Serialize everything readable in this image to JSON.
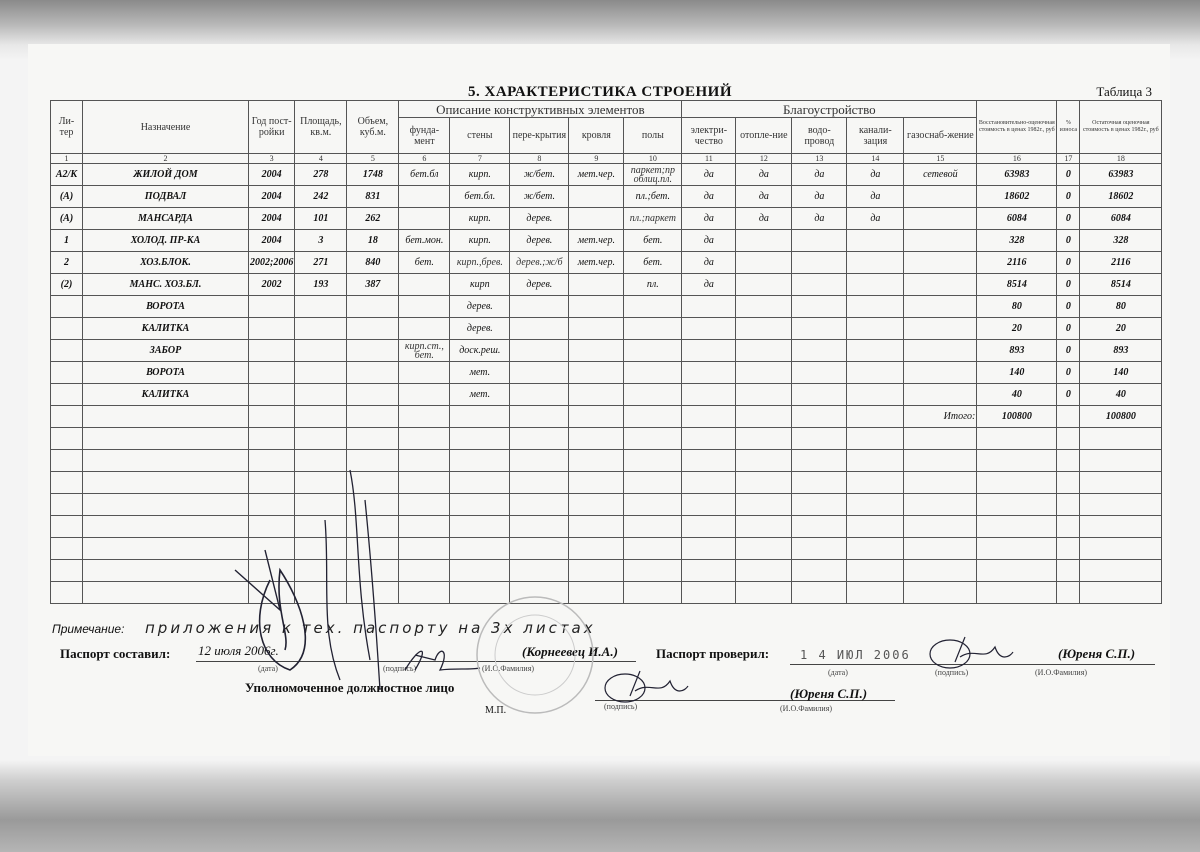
{
  "document": {
    "title": "5. ХАРАКТЕРИСТИКА СТРОЕНИЙ",
    "table_number": "Таблица 3"
  },
  "table": {
    "headers": {
      "liter": "Ли-тер",
      "purpose": "Назначение",
      "year": "Год пост-ройки",
      "area": "Площадь, кв.м.",
      "volume": "Объем, куб.м.",
      "group_constructive": "Описание конструктивных элементов",
      "foundation": "фунда-мент",
      "walls": "стены",
      "floors_slabs": "пере-крытия",
      "roof": "кровля",
      "floors": "полы",
      "group_amenities": "Благоустройство",
      "electricity": "электри-чество",
      "heating": "отопле-ние",
      "water": "водо-провод",
      "sewer": "канали-зация",
      "gas": "газоснаб-жение",
      "replacement_cost": "Восстановительно-оценочная стоимость в ценах 1982г., руб",
      "wear": "% износа",
      "residual_cost": "Остаточная оценочная стоимость в ценах 1982г., руб"
    },
    "column_numbers": [
      "1",
      "2",
      "3",
      "4",
      "5",
      "6",
      "7",
      "8",
      "9",
      "10",
      "11",
      "12",
      "13",
      "14",
      "15",
      "16",
      "17",
      "18"
    ],
    "rows": [
      [
        "А2/К",
        "ЖИЛОЙ ДОМ",
        "2004",
        "278",
        "1748",
        "бет.бл",
        "кирп.",
        "ж/бет.",
        "мет.чер.",
        "паркет;пр облиц.пл.",
        "да",
        "да",
        "да",
        "да",
        "сетевой",
        "63983",
        "0",
        "63983"
      ],
      [
        "(А)",
        "ПОДВАЛ",
        "2004",
        "242",
        "831",
        "",
        "бет.бл.",
        "ж/бет.",
        "",
        "пл.;бет.",
        "да",
        "да",
        "да",
        "да",
        "",
        "18602",
        "0",
        "18602"
      ],
      [
        "(А)",
        "МАНСАРДА",
        "2004",
        "101",
        "262",
        "",
        "кирп.",
        "дерев.",
        "",
        "пл.;паркет",
        "да",
        "да",
        "да",
        "да",
        "",
        "6084",
        "0",
        "6084"
      ],
      [
        "1",
        "ХОЛОД. ПР-КА",
        "2004",
        "3",
        "18",
        "бет.мон.",
        "кирп.",
        "дерев.",
        "мет.чер.",
        "бет.",
        "да",
        "",
        "",
        "",
        "",
        "328",
        "0",
        "328"
      ],
      [
        "2",
        "ХОЗ.БЛОК.",
        "2002;2006",
        "271",
        "840",
        "бет.",
        "кирп.,брев.",
        "дерев.;ж/б",
        "мет.чер.",
        "бет.",
        "да",
        "",
        "",
        "",
        "",
        "2116",
        "0",
        "2116"
      ],
      [
        "(2)",
        "МАНС. ХОЗ.БЛ.",
        "2002",
        "193",
        "387",
        "",
        "кирп",
        "дерев.",
        "",
        "пл.",
        "да",
        "",
        "",
        "",
        "",
        "8514",
        "0",
        "8514"
      ],
      [
        "",
        "ВОРОТА",
        "",
        "",
        "",
        "",
        "дерев.",
        "",
        "",
        "",
        "",
        "",
        "",
        "",
        "",
        "80",
        "0",
        "80"
      ],
      [
        "",
        "КАЛИТКА",
        "",
        "",
        "",
        "",
        "дерев.",
        "",
        "",
        "",
        "",
        "",
        "",
        "",
        "",
        "20",
        "0",
        "20"
      ],
      [
        "",
        "ЗАБОР",
        "",
        "",
        "",
        "кирп.ст., бет.",
        "доск.реш.",
        "",
        "",
        "",
        "",
        "",
        "",
        "",
        "",
        "893",
        "0",
        "893"
      ],
      [
        "",
        "ВОРОТА",
        "",
        "",
        "",
        "",
        "мет.",
        "",
        "",
        "",
        "",
        "",
        "",
        "",
        "",
        "140",
        "0",
        "140"
      ],
      [
        "",
        "КАЛИТКА",
        "",
        "",
        "",
        "",
        "мет.",
        "",
        "",
        "",
        "",
        "",
        "",
        "",
        "",
        "40",
        "0",
        "40"
      ]
    ],
    "total_label": "Итого:",
    "total_replacement_cost": "100800",
    "total_residual_cost": "100800"
  },
  "footer": {
    "note_label": "Примечание:",
    "note_text": "приложения к тех. паспорту на 3х листах",
    "compiled_label": "Паспорт составил:",
    "compiled_date": "12 июля 2006г.",
    "compiled_name": "(Корнеевец И.А.)",
    "checked_label": "Паспорт проверил:",
    "checked_date": "1 4 ИЮЛ 2006",
    "checked_name": "(Юреня С.П.)",
    "authorized_label": "Уполномоченное должностное лицо",
    "authorized_name": "(Юреня С.П.)",
    "caption_date": "(дата)",
    "caption_signature": "(подпись)",
    "caption_name": "(И.О.Фамилия)",
    "seal_place": "М.П."
  }
}
